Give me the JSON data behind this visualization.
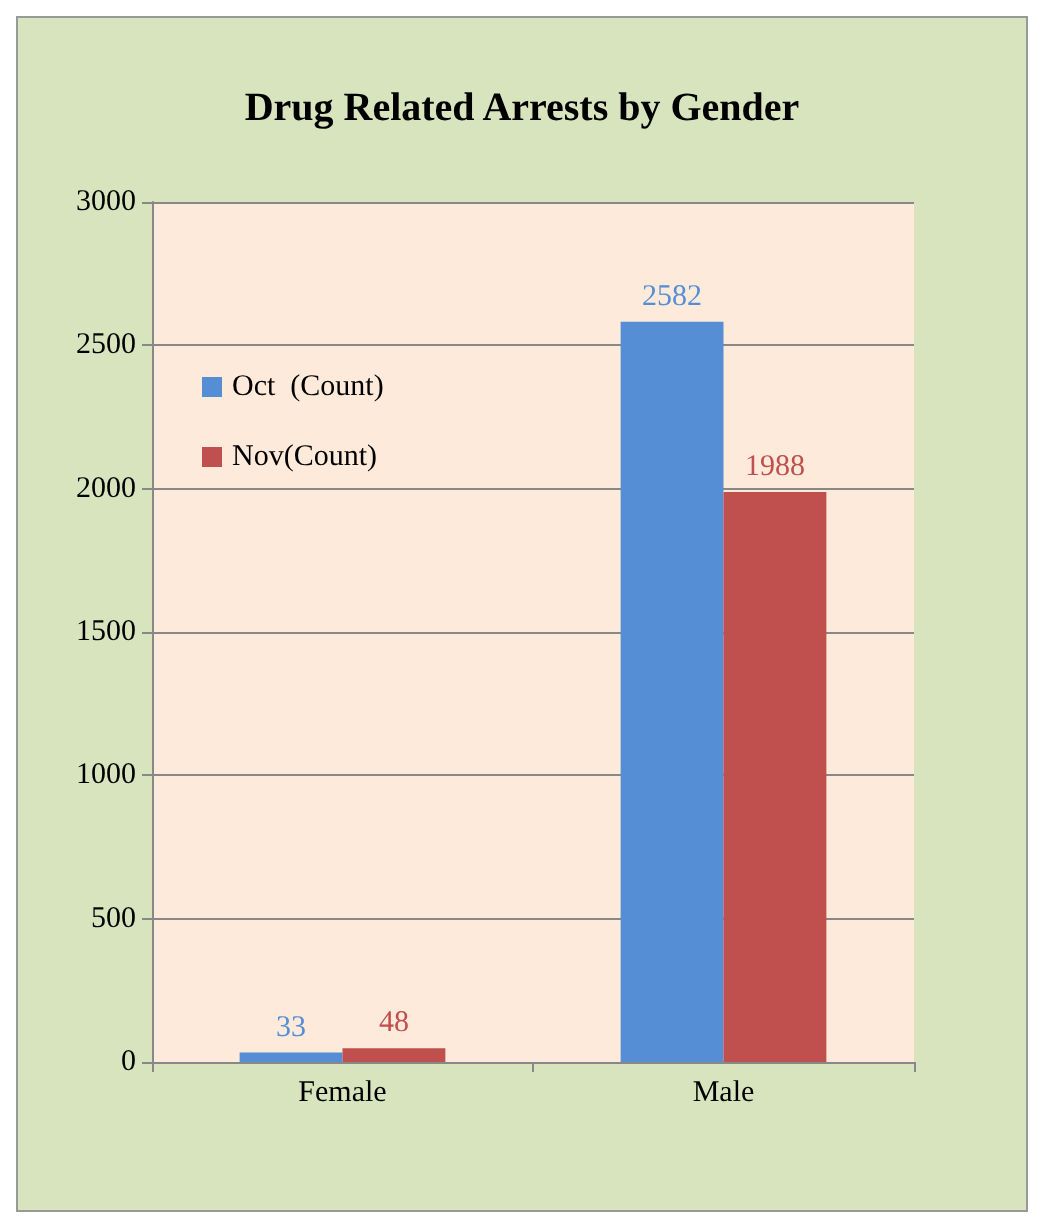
{
  "chart_data": {
    "type": "bar",
    "title": "Drug Related Arrests by Gender",
    "categories": [
      "Female",
      "Male"
    ],
    "series": [
      {
        "name": "Oct  (Count)",
        "color": "#558ed5",
        "values": [
          33,
          2582
        ]
      },
      {
        "name": "Nov(Count)",
        "color": "#c0504d",
        "values": [
          48,
          1988
        ]
      }
    ],
    "ylim": [
      0,
      3000
    ],
    "yticks": [
      0,
      500,
      1000,
      1500,
      2000,
      2500,
      3000
    ],
    "grid": "y",
    "legend": "top left",
    "data_labels": true
  }
}
